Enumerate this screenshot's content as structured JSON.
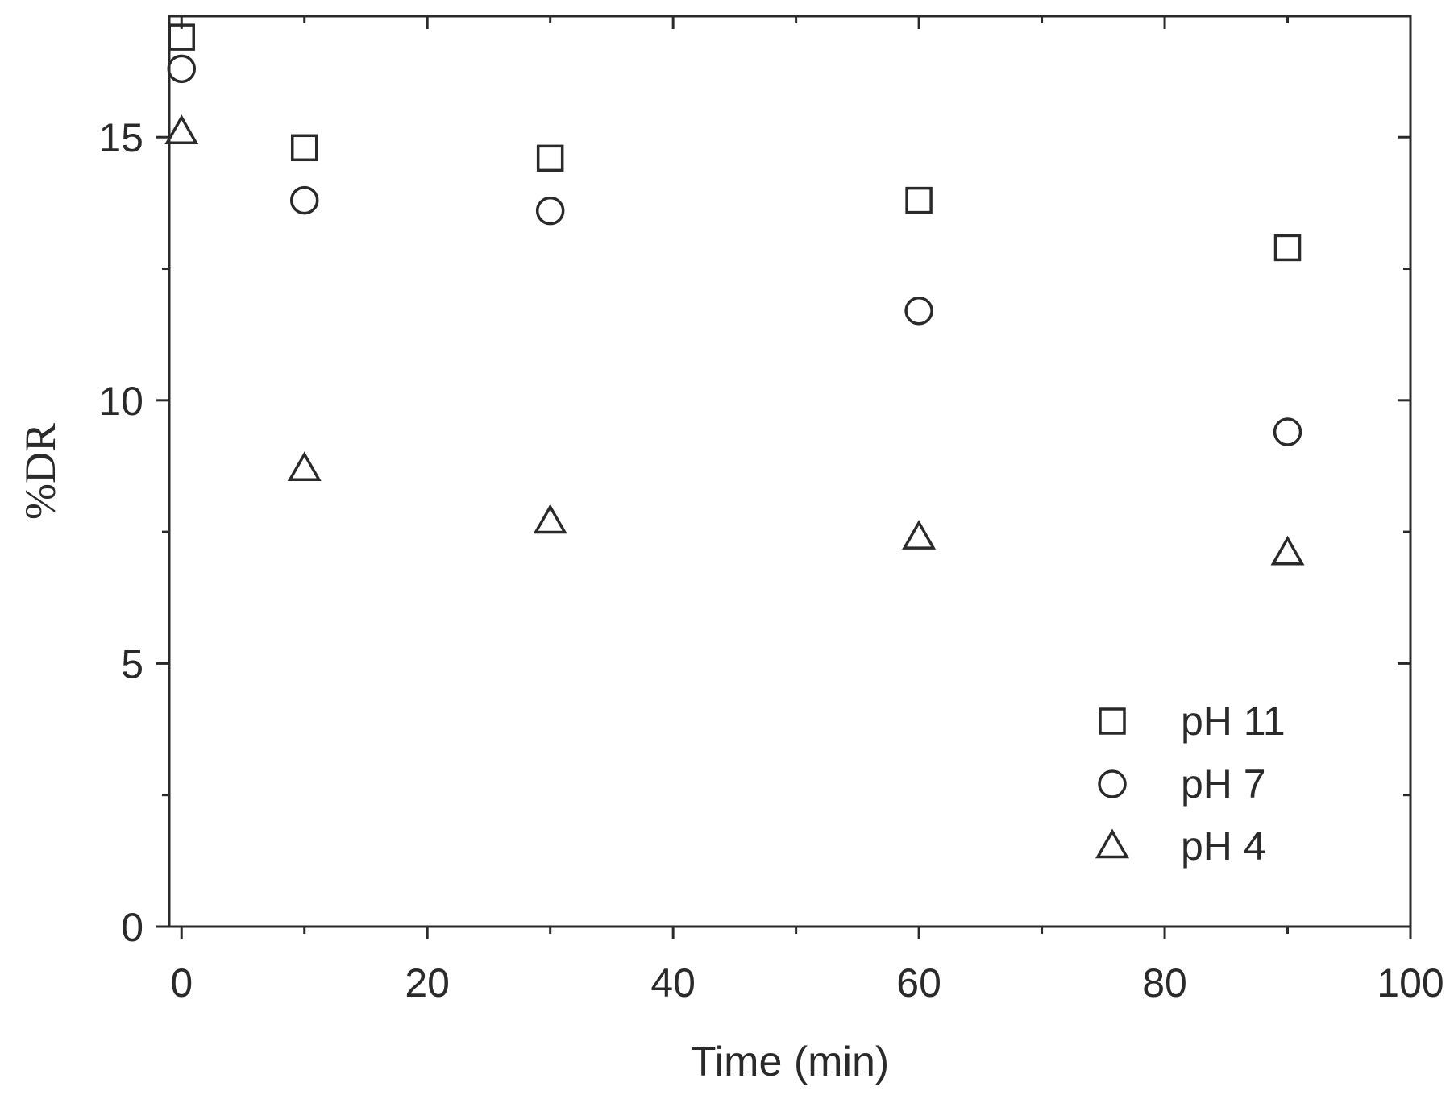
{
  "chart_data": {
    "type": "scatter",
    "title": "",
    "xlabel": "Time (min)",
    "ylabel": "%DR",
    "xlim": [
      -1,
      100
    ],
    "ylim": [
      0,
      17.3
    ],
    "x_ticks": [
      0,
      20,
      40,
      60,
      80,
      100
    ],
    "y_ticks": [
      0,
      5,
      10,
      15
    ],
    "grid": false,
    "legend": "bottom-right",
    "series": [
      {
        "name": "pH 11",
        "marker": "square",
        "x": [
          0,
          10,
          30,
          60,
          90
        ],
        "y": [
          16.9,
          14.8,
          14.6,
          13.8,
          12.9
        ]
      },
      {
        "name": "pH 7",
        "marker": "circle",
        "x": [
          0,
          10,
          30,
          60,
          90
        ],
        "y": [
          16.3,
          13.8,
          13.6,
          11.7,
          9.4
        ]
      },
      {
        "name": "pH 4",
        "marker": "triangle",
        "x": [
          0,
          10,
          30,
          60,
          90
        ],
        "y": [
          15.1,
          8.7,
          7.7,
          7.4,
          7.1
        ]
      }
    ]
  }
}
